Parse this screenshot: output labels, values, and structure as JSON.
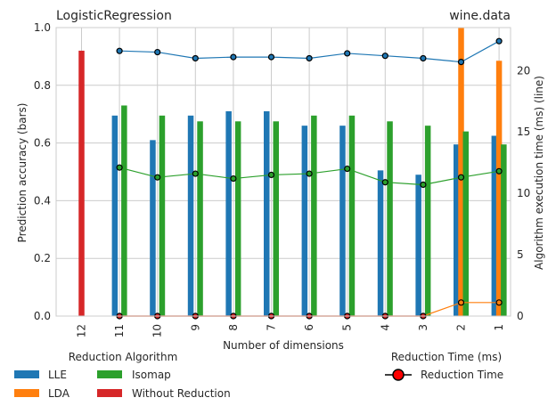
{
  "chart_data": {
    "type": "bar",
    "title_left": "LogisticRegression",
    "title_right": "wine.data",
    "xlabel": "Number of dimensions",
    "ylabel_left": "Prediction accuracy (bars)",
    "ylabel_right": "Algorithm execution time (ms) (line)",
    "ylim_left": [
      0,
      1.0
    ],
    "ylim_right": [
      0,
      23.5
    ],
    "yticks_left": [
      "0.0",
      "0.2",
      "0.4",
      "0.6",
      "0.8",
      "1.0"
    ],
    "yticks_right": [
      "0",
      "5",
      "10",
      "15",
      "20"
    ],
    "categories": [
      "12",
      "11",
      "10",
      "9",
      "8",
      "7",
      "6",
      "5",
      "4",
      "3",
      "2",
      "1"
    ],
    "grid": true,
    "bar_series": [
      {
        "name": "LLE",
        "color": "#1f77b4",
        "values": [
          null,
          0.695,
          0.61,
          0.695,
          0.71,
          0.71,
          0.66,
          0.66,
          0.505,
          0.49,
          0.595,
          0.625
        ]
      },
      {
        "name": "LDA",
        "color": "#ff7f0e",
        "values": [
          null,
          null,
          null,
          null,
          null,
          null,
          null,
          null,
          null,
          null,
          1.0,
          0.885
        ]
      },
      {
        "name": "Isomap",
        "color": "#2ca02c",
        "values": [
          null,
          0.73,
          0.695,
          0.675,
          0.675,
          0.675,
          0.695,
          0.695,
          0.675,
          0.66,
          0.64,
          0.595
        ]
      },
      {
        "name": "Without Reduction",
        "color": "#d62728",
        "values": [
          0.92,
          null,
          null,
          null,
          null,
          null,
          null,
          null,
          null,
          null,
          null,
          null
        ]
      }
    ],
    "line_series": [
      {
        "key": "lle",
        "color": "#1f77b4",
        "values": [
          null,
          21.6,
          21.5,
          21.0,
          21.1,
          21.1,
          21.0,
          21.4,
          21.2,
          21.0,
          20.7,
          22.4
        ]
      },
      {
        "key": "isomap",
        "color": "#2ca02c",
        "values": [
          null,
          12.1,
          11.3,
          11.6,
          11.2,
          11.5,
          11.6,
          12.0,
          10.9,
          10.7,
          11.3,
          11.8
        ]
      },
      {
        "key": "lda",
        "color": "#ff7f0e",
        "values": [
          null,
          0,
          0,
          0,
          0,
          0,
          0,
          0,
          0,
          0,
          1.1,
          1.1
        ]
      },
      {
        "key": "red",
        "color": "#d62728",
        "values": [
          null,
          0,
          0,
          0,
          0,
          0,
          0,
          0,
          0,
          0,
          null,
          null
        ]
      }
    ],
    "legend_left": {
      "title": "Reduction Algorithm",
      "items": [
        "LLE",
        "Isomap",
        "LDA",
        "Without Reduction"
      ]
    },
    "legend_right": {
      "title": "Reduction Time (ms)",
      "item": "Reduction Time"
    }
  }
}
